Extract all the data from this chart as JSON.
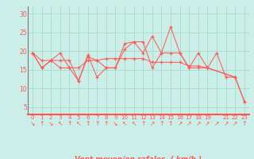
{
  "bg_color": "#cceee8",
  "grid_color": "#aaddcc",
  "line_color": "#ff5555",
  "marker_color": "#ff8888",
  "xlabel": "Vent moyen/en rafales  ( km/h )",
  "ylabel_ticks": [
    5,
    10,
    15,
    20,
    25,
    30
  ],
  "xlim": [
    -0.5,
    23.5
  ],
  "ylim": [
    3,
    32
  ],
  "x_ticks": [
    0,
    1,
    2,
    3,
    4,
    5,
    6,
    7,
    8,
    9,
    10,
    11,
    12,
    13,
    14,
    15,
    16,
    17,
    18,
    19,
    20,
    21,
    22,
    23
  ],
  "series": [
    [
      19.5,
      15.5,
      17.5,
      19.5,
      15.5,
      12.0,
      18.5,
      17.5,
      15.5,
      15.5,
      22.0,
      22.5,
      22.5,
      15.5,
      19.5,
      26.5,
      19.5,
      15.5,
      19.5,
      15.5,
      19.5,
      13.0,
      13.0,
      6.5
    ],
    [
      19.5,
      15.5,
      17.5,
      17.5,
      17.5,
      12.0,
      19.0,
      13.0,
      15.5,
      15.5,
      20.5,
      22.5,
      19.5,
      24.0,
      19.5,
      19.5,
      19.5,
      15.5,
      15.5,
      15.5,
      null,
      null,
      13.0,
      null
    ],
    [
      19.5,
      17.5,
      17.5,
      15.5,
      15.5,
      15.5,
      17.5,
      17.5,
      18.0,
      18.0,
      18.0,
      18.0,
      18.0,
      17.0,
      17.0,
      17.0,
      17.0,
      16.0,
      16.0,
      15.5,
      null,
      null,
      13.0,
      6.5
    ]
  ],
  "wind_arrows": [
    "↘",
    "↑",
    "↘",
    "↖",
    "↑",
    "↖",
    "↑",
    "↑",
    "↑",
    "↘",
    "↖",
    "↖",
    "↑",
    "↗",
    "↑",
    "↑",
    "↗",
    "↗",
    "↗",
    "↗",
    "↗",
    "↗",
    "↗",
    "↑"
  ],
  "x_tick_labels": [
    "0",
    "1",
    "2",
    "3",
    "4",
    "5",
    "6",
    "7",
    "8",
    "9",
    "10",
    "11",
    "12",
    "13",
    "14",
    "15",
    "16",
    "17",
    "18",
    "19",
    "  ",
    "21",
    "22",
    "23"
  ]
}
